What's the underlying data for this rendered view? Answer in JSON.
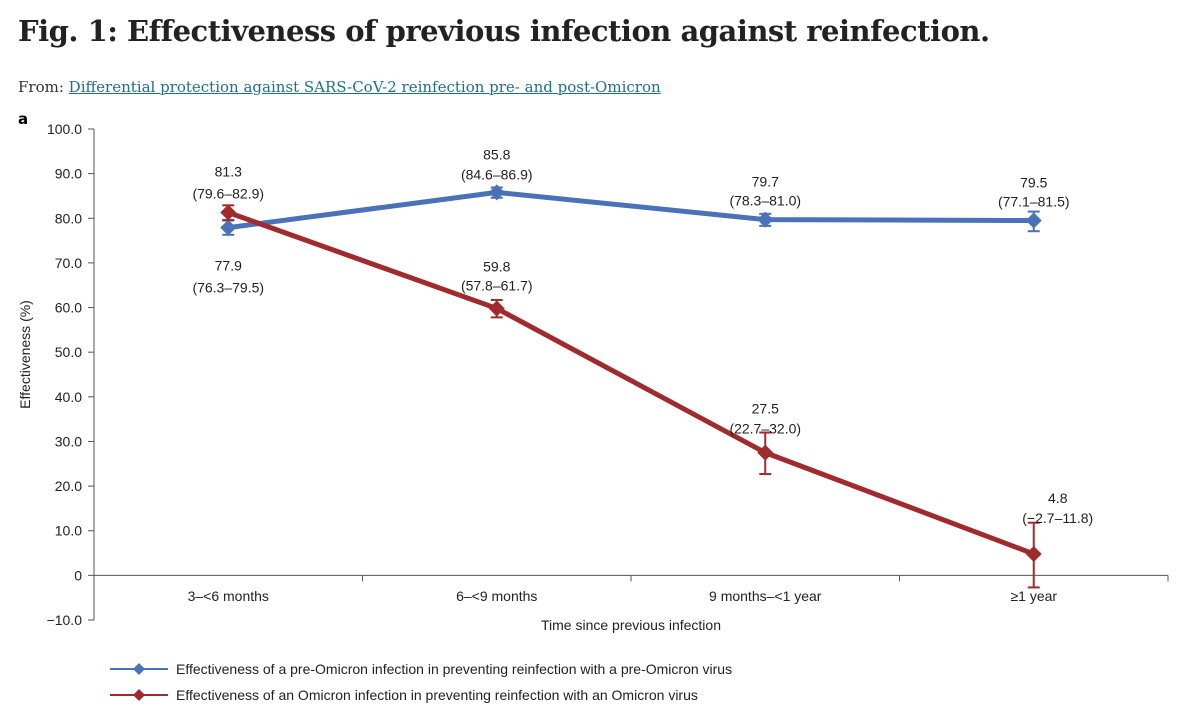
{
  "figure": {
    "title": "Fig. 1: Effectiveness of previous infection against reinfection.",
    "from_prefix": "From:",
    "from_link": "Differential protection against SARS-CoV-2 reinfection pre- and post-Omicron",
    "panel": "a"
  },
  "chart_data": {
    "type": "line",
    "title": "",
    "xlabel": "Time since previous infection",
    "ylabel": "Effectiveness (%)",
    "ylim": [
      -10,
      100
    ],
    "yticks": [
      "100.0",
      "90.0",
      "80.0",
      "70.0",
      "60.0",
      "50.0",
      "40.0",
      "30.0",
      "20.0",
      "10.0",
      "0",
      "−10.0"
    ],
    "ytick_values": [
      100,
      90,
      80,
      70,
      60,
      50,
      40,
      30,
      20,
      10,
      0,
      -10
    ],
    "categories": [
      "3–<6 months",
      "6–<9 months",
      "9 months–<1 year",
      "≥1 year"
    ],
    "grid": false,
    "legend_position": "bottom",
    "series": [
      {
        "name": "Effectiveness of a pre-Omicron infection in preventing reinfection with a pre-Omicron virus",
        "color": "#4a72b8",
        "marker": "diamond",
        "values": [
          77.9,
          85.8,
          79.7,
          79.5
        ],
        "ci_low": [
          76.3,
          84.6,
          78.3,
          77.1
        ],
        "ci_high": [
          79.5,
          86.9,
          81.0,
          81.5
        ],
        "value_labels": [
          "77.9",
          "85.8",
          "79.7",
          "79.5"
        ],
        "ci_labels": [
          "(76.3–79.5)",
          "(84.6–86.9)",
          "(78.3–81.0)",
          "(77.1–81.5)"
        ]
      },
      {
        "name": "Effectiveness of an Omicron infection in preventing reinfection with an Omicron virus",
        "color": "#a12a2d",
        "marker": "diamond",
        "values": [
          81.3,
          59.8,
          27.5,
          4.8
        ],
        "ci_low": [
          79.6,
          57.8,
          22.7,
          -2.7
        ],
        "ci_high": [
          82.9,
          61.7,
          32.0,
          11.8
        ],
        "value_labels": [
          "81.3",
          "59.8",
          "27.5",
          "4.8"
        ],
        "ci_labels": [
          "(79.6–82.9)",
          "(57.8–61.7)",
          "(22.7–32.0)",
          "(−2.7–11.8)"
        ]
      }
    ]
  }
}
